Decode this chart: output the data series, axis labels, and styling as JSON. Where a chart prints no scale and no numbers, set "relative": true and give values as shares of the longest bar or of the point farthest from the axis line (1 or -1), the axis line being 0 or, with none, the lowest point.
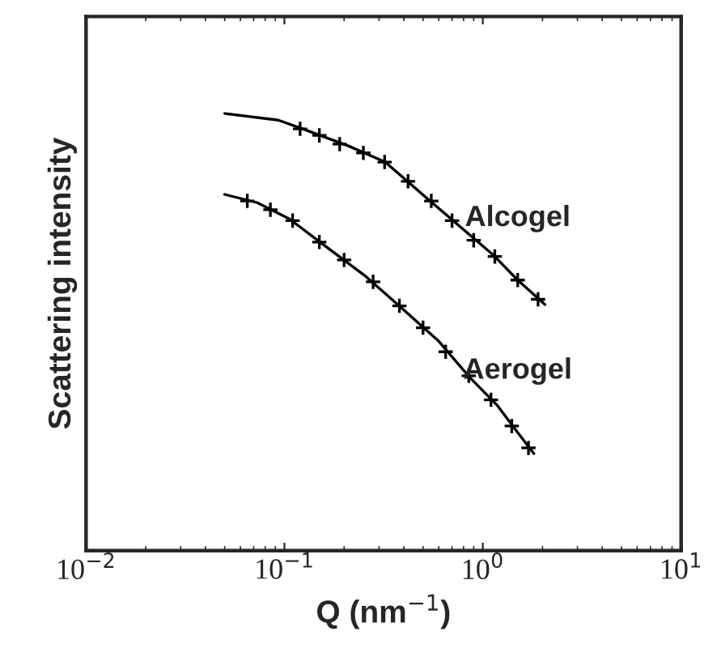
{
  "chart_data": {
    "type": "scatter",
    "relative": true,
    "log": "x",
    "xlabel": "Q (nm$^{−1}$)",
    "ylabel": "Scattering intensity",
    "xlim": [
      0.01,
      10
    ],
    "xticks": [
      {
        "value": 0.01,
        "label": "10$^{−2}$"
      },
      {
        "value": 0.1,
        "label": "10$^{−1}$"
      },
      {
        "value": 1,
        "label": "10$^{0}$"
      },
      {
        "value": 10,
        "label": "10$^{1}$"
      }
    ],
    "marker": "cross",
    "grid": false,
    "legend": false,
    "series": [
      {
        "name": "Alcogel",
        "type": "line",
        "marker": "none",
        "color": "#000000",
        "x": [
          0.05,
          0.093,
          0.127,
          0.21,
          0.322,
          0.53,
          0.77,
          1.12,
          1.5,
          2.06
        ],
        "values": [
          1.0,
          0.985,
          0.963,
          0.926,
          0.889,
          0.804,
          0.741,
          0.678,
          0.619,
          0.563
        ]
      },
      {
        "color": "#000000",
        "x": [
          0.12,
          0.15,
          0.19,
          0.25,
          0.32,
          0.42,
          0.55,
          0.7,
          0.9,
          1.15,
          1.5,
          1.9
        ],
        "values": [
          0.965,
          0.95,
          0.93,
          0.91,
          0.889,
          0.845,
          0.8,
          0.755,
          0.71,
          0.673,
          0.619,
          0.575
        ]
      },
      {
        "name": "Aerogel",
        "type": "line",
        "marker": "none",
        "color": "#000000",
        "x": [
          0.05,
          0.073,
          0.106,
          0.153,
          0.253,
          0.388,
          0.594,
          0.861,
          1.18,
          1.5,
          1.81
        ],
        "values": [
          0.815,
          0.796,
          0.759,
          0.704,
          0.63,
          0.556,
          0.481,
          0.396,
          0.333,
          0.27,
          0.222
        ]
      },
      {
        "color": "#000000",
        "x": [
          0.065,
          0.085,
          0.11,
          0.15,
          0.2,
          0.28,
          0.38,
          0.5,
          0.65,
          0.85,
          1.1,
          1.4,
          1.7
        ],
        "values": [
          0.8,
          0.78,
          0.755,
          0.706,
          0.665,
          0.615,
          0.56,
          0.51,
          0.455,
          0.4,
          0.345,
          0.285,
          0.235
        ]
      }
    ]
  }
}
